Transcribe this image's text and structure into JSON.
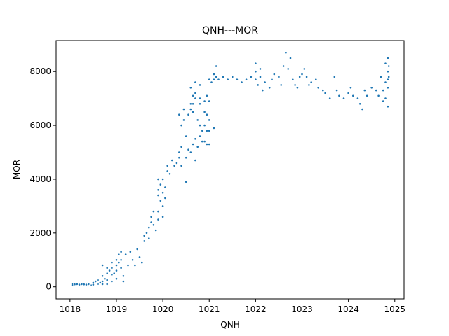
{
  "chart_data": {
    "type": "scatter",
    "title": "QNH---MOR",
    "xlabel": "QNH",
    "ylabel": "MOR",
    "xlim": [
      1017.7,
      1025.2
    ],
    "ylim": [
      -450,
      9150
    ],
    "xticks": [
      1018,
      1019,
      1020,
      1021,
      1022,
      1023,
      1024,
      1025
    ],
    "yticks": [
      0,
      2000,
      4000,
      6000,
      8000
    ],
    "grid": false,
    "color": "#1f77b4",
    "series": [
      {
        "points": [
          [
            1018.05,
            100
          ],
          [
            1018.05,
            60
          ],
          [
            1018.1,
            90
          ],
          [
            1018.15,
            100
          ],
          [
            1018.2,
            80
          ],
          [
            1018.25,
            100
          ],
          [
            1018.3,
            90
          ],
          [
            1018.35,
            80
          ],
          [
            1018.4,
            100
          ],
          [
            1018.45,
            60
          ],
          [
            1018.5,
            150
          ],
          [
            1018.5,
            80
          ],
          [
            1018.55,
            200
          ],
          [
            1018.6,
            100
          ],
          [
            1018.6,
            250
          ],
          [
            1018.65,
            150
          ],
          [
            1018.7,
            800
          ],
          [
            1018.7,
            400
          ],
          [
            1018.7,
            200
          ],
          [
            1018.7,
            100
          ],
          [
            1018.75,
            300
          ],
          [
            1018.8,
            700
          ],
          [
            1018.8,
            500
          ],
          [
            1018.8,
            250
          ],
          [
            1018.8,
            100
          ],
          [
            1018.85,
            600
          ],
          [
            1018.9,
            900
          ],
          [
            1018.9,
            700
          ],
          [
            1018.9,
            450
          ],
          [
            1018.9,
            200
          ],
          [
            1018.95,
            500
          ],
          [
            1019.0,
            1000
          ],
          [
            1019.0,
            800
          ],
          [
            1019.0,
            600
          ],
          [
            1019.0,
            300
          ],
          [
            1019.05,
            1200
          ],
          [
            1019.05,
            900
          ],
          [
            1019.1,
            1300
          ],
          [
            1019.1,
            1000
          ],
          [
            1019.1,
            700
          ],
          [
            1019.15,
            400
          ],
          [
            1019.15,
            200
          ],
          [
            1019.2,
            1200
          ],
          [
            1019.25,
            800
          ],
          [
            1019.3,
            1300
          ],
          [
            1019.35,
            1000
          ],
          [
            1019.4,
            800
          ],
          [
            1019.45,
            1400
          ],
          [
            1019.5,
            1100
          ],
          [
            1019.55,
            900
          ],
          [
            1019.6,
            1900
          ],
          [
            1019.6,
            1700
          ],
          [
            1019.65,
            2000
          ],
          [
            1019.7,
            2200
          ],
          [
            1019.7,
            1800
          ],
          [
            1019.75,
            2600
          ],
          [
            1019.75,
            2400
          ],
          [
            1019.8,
            2800
          ],
          [
            1019.8,
            2300
          ],
          [
            1019.85,
            2100
          ],
          [
            1019.9,
            2500
          ],
          [
            1019.9,
            2800
          ],
          [
            1019.9,
            3400
          ],
          [
            1019.9,
            4000
          ],
          [
            1019.9,
            3600
          ],
          [
            1019.95,
            3200
          ],
          [
            1019.95,
            3800
          ],
          [
            1020.0,
            2600
          ],
          [
            1020.0,
            3000
          ],
          [
            1020.0,
            3500
          ],
          [
            1020.0,
            4000
          ],
          [
            1020.05,
            3300
          ],
          [
            1020.05,
            3700
          ],
          [
            1020.1,
            4300
          ],
          [
            1020.1,
            4500
          ],
          [
            1020.15,
            4200
          ],
          [
            1020.2,
            4700
          ],
          [
            1020.25,
            4500
          ],
          [
            1020.3,
            4600
          ],
          [
            1020.35,
            4800
          ],
          [
            1020.35,
            5000
          ],
          [
            1020.35,
            6400
          ],
          [
            1020.4,
            5200
          ],
          [
            1020.4,
            4500
          ],
          [
            1020.4,
            6000
          ],
          [
            1020.45,
            6600
          ],
          [
            1020.45,
            6200
          ],
          [
            1020.5,
            5600
          ],
          [
            1020.5,
            4800
          ],
          [
            1020.5,
            3900
          ],
          [
            1020.55,
            6400
          ],
          [
            1020.55,
            5100
          ],
          [
            1020.6,
            6800
          ],
          [
            1020.6,
            7400
          ],
          [
            1020.6,
            6600
          ],
          [
            1020.6,
            5000
          ],
          [
            1020.65,
            7100
          ],
          [
            1020.65,
            6800
          ],
          [
            1020.65,
            6500
          ],
          [
            1020.65,
            5300
          ],
          [
            1020.7,
            7600
          ],
          [
            1020.7,
            7200
          ],
          [
            1020.7,
            7000
          ],
          [
            1020.7,
            5500
          ],
          [
            1020.7,
            4700
          ],
          [
            1020.75,
            6200
          ],
          [
            1020.75,
            5200
          ],
          [
            1020.8,
            7500
          ],
          [
            1020.8,
            7000
          ],
          [
            1020.8,
            6800
          ],
          [
            1020.8,
            6000
          ],
          [
            1020.8,
            5600
          ],
          [
            1020.85,
            5800
          ],
          [
            1020.85,
            5400
          ],
          [
            1020.9,
            6900
          ],
          [
            1020.9,
            6500
          ],
          [
            1020.9,
            6000
          ],
          [
            1020.9,
            5400
          ],
          [
            1020.95,
            7100
          ],
          [
            1020.95,
            6400
          ],
          [
            1020.95,
            5800
          ],
          [
            1020.95,
            5300
          ],
          [
            1021.0,
            7700
          ],
          [
            1021.0,
            6900
          ],
          [
            1021.0,
            6200
          ],
          [
            1021.0,
            5800
          ],
          [
            1021.0,
            5300
          ],
          [
            1021.05,
            7600
          ],
          [
            1021.1,
            7900
          ],
          [
            1021.1,
            7700
          ],
          [
            1021.1,
            5900
          ],
          [
            1021.15,
            8200
          ],
          [
            1021.15,
            7800
          ],
          [
            1021.2,
            7700
          ],
          [
            1021.3,
            7800
          ],
          [
            1021.4,
            7700
          ],
          [
            1021.5,
            7800
          ],
          [
            1021.6,
            7700
          ],
          [
            1021.7,
            7600
          ],
          [
            1021.8,
            7700
          ],
          [
            1021.9,
            7800
          ],
          [
            1022.0,
            8300
          ],
          [
            1022.0,
            8000
          ],
          [
            1022.0,
            7700
          ],
          [
            1022.05,
            7500
          ],
          [
            1022.1,
            8100
          ],
          [
            1022.1,
            7800
          ],
          [
            1022.15,
            7300
          ],
          [
            1022.2,
            7600
          ],
          [
            1022.3,
            7400
          ],
          [
            1022.35,
            7700
          ],
          [
            1022.4,
            7900
          ],
          [
            1022.5,
            7800
          ],
          [
            1022.55,
            7500
          ],
          [
            1022.6,
            8200
          ],
          [
            1022.65,
            8700
          ],
          [
            1022.7,
            8100
          ],
          [
            1022.75,
            8500
          ],
          [
            1022.8,
            7700
          ],
          [
            1022.85,
            7500
          ],
          [
            1022.9,
            7400
          ],
          [
            1022.95,
            7800
          ],
          [
            1023.0,
            7900
          ],
          [
            1023.05,
            8100
          ],
          [
            1023.1,
            7800
          ],
          [
            1023.15,
            7500
          ],
          [
            1023.2,
            7600
          ],
          [
            1023.3,
            7700
          ],
          [
            1023.35,
            7400
          ],
          [
            1023.45,
            7300
          ],
          [
            1023.5,
            7200
          ],
          [
            1023.6,
            7000
          ],
          [
            1023.7,
            7800
          ],
          [
            1023.75,
            7300
          ],
          [
            1023.8,
            7100
          ],
          [
            1023.9,
            7000
          ],
          [
            1024.0,
            7200
          ],
          [
            1024.05,
            7400
          ],
          [
            1024.1,
            7100
          ],
          [
            1024.2,
            7000
          ],
          [
            1024.25,
            6800
          ],
          [
            1024.3,
            6600
          ],
          [
            1024.35,
            7300
          ],
          [
            1024.4,
            7100
          ],
          [
            1024.5,
            7400
          ],
          [
            1024.6,
            7300
          ],
          [
            1024.65,
            7100
          ],
          [
            1024.7,
            7800
          ],
          [
            1024.75,
            7300
          ],
          [
            1024.75,
            6900
          ],
          [
            1024.8,
            7600
          ],
          [
            1024.8,
            7000
          ],
          [
            1024.8,
            8300
          ],
          [
            1024.85,
            8000
          ],
          [
            1024.85,
            7700
          ],
          [
            1024.85,
            7400
          ],
          [
            1024.85,
            8500
          ],
          [
            1024.85,
            6700
          ],
          [
            1024.87,
            8200
          ],
          [
            1024.87,
            7800
          ]
        ]
      }
    ]
  }
}
